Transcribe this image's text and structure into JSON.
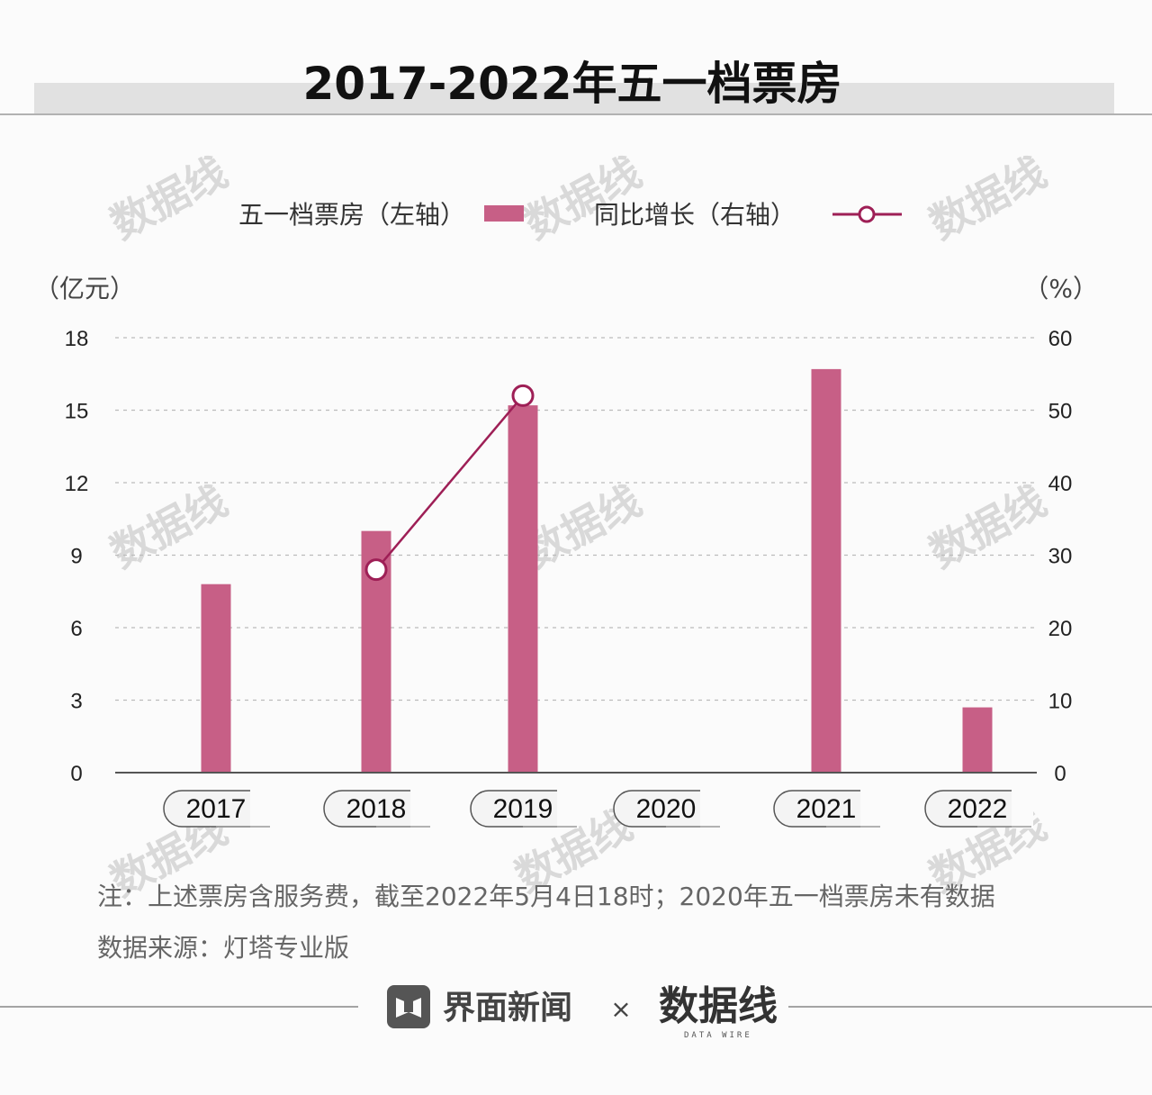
{
  "header": {
    "title": "2017-2022年五一档票房"
  },
  "legend": {
    "bar_label": "五一档票房（左轴）",
    "line_label": "同比增长（右轴）"
  },
  "axes": {
    "left_unit": "（亿元）",
    "right_unit": "（%）"
  },
  "colors": {
    "bar": "#c75f86",
    "line": "#9e1f56",
    "grid": "#bbbbbb",
    "baseline": "#555555"
  },
  "chart_data": {
    "type": "bar",
    "categories": [
      "2017",
      "2018",
      "2019",
      "2020",
      "2021",
      "2022"
    ],
    "series": [
      {
        "name": "五一档票房（左轴）",
        "type": "bar",
        "axis": "left",
        "values": [
          7.8,
          10.0,
          15.2,
          null,
          16.7,
          2.7
        ]
      },
      {
        "name": "同比增长（右轴）",
        "type": "line",
        "axis": "right",
        "values": [
          null,
          28,
          52,
          null,
          null,
          null
        ]
      }
    ],
    "y_left": {
      "ticks": [
        0,
        3,
        6,
        9,
        12,
        15,
        18
      ],
      "ylim": [
        0,
        18
      ]
    },
    "y_right": {
      "ticks": [
        0,
        10,
        20,
        30,
        40,
        50,
        60
      ],
      "ylim": [
        0,
        60
      ]
    },
    "grid": true,
    "legend_position": "top"
  },
  "notes": {
    "note": "注：上述票房含服务费，截至2022年5月4日18时；2020年五一档票房未有数据",
    "source": "数据来源：灯塔专业版"
  },
  "footer": {
    "brand": "界面新闻",
    "times": "×",
    "partner": "数据线",
    "partner_sub": "DATA WIRE"
  },
  "watermark": {
    "text": "数据线"
  }
}
